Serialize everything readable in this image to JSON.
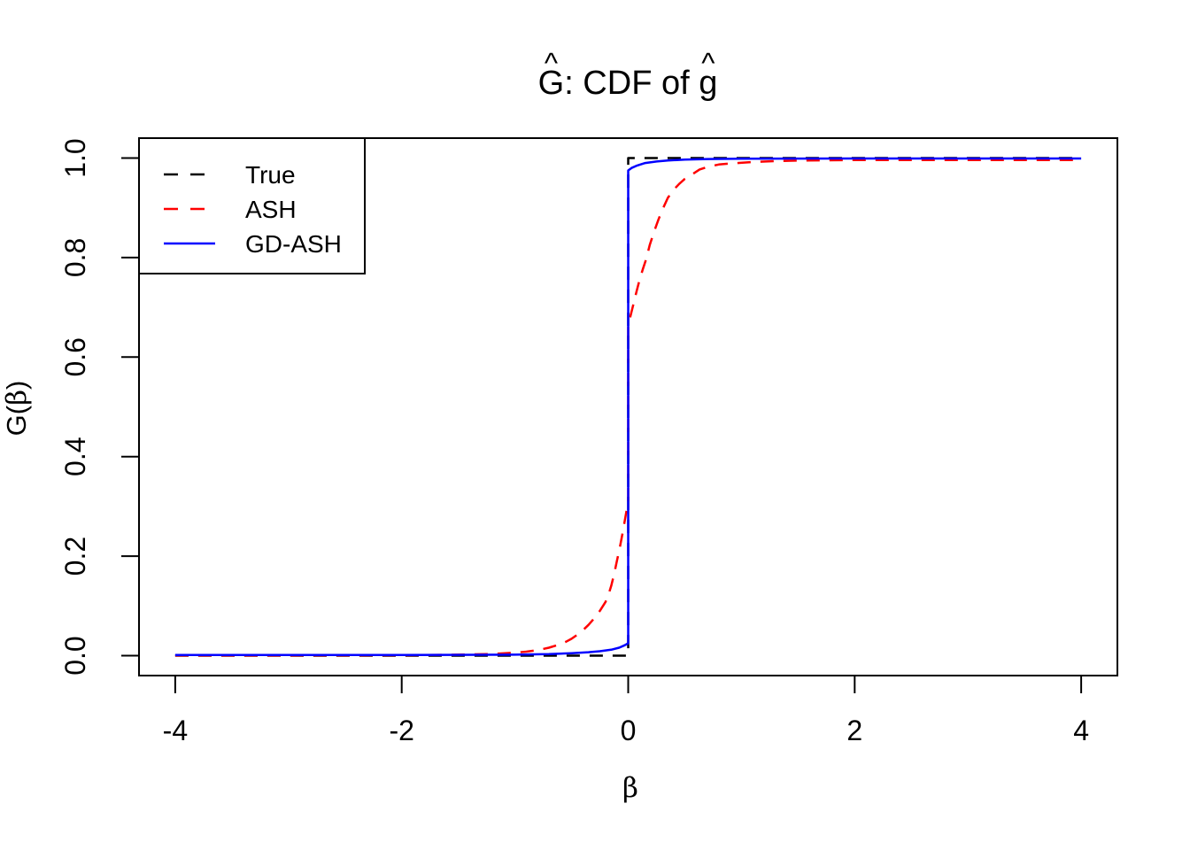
{
  "chart_data": {
    "type": "line",
    "title": "Ĝ: CDF of ĝ",
    "title_parts": {
      "hat": "^",
      "G": "G",
      "middle": ": CDF of ",
      "g": "g"
    },
    "xlabel": "β",
    "ylabel": "Ĝ(β)",
    "ylabel_parts": {
      "hat": "^",
      "G": "G",
      "open": "(",
      "beta": "β",
      "close": ")"
    },
    "xlim": [
      -4,
      4
    ],
    "ylim": [
      0,
      1
    ],
    "grid": false,
    "x_ticks": [
      -4,
      -2,
      0,
      2,
      4
    ],
    "x_tick_labels": [
      "-4",
      "-2",
      "0",
      "2",
      "4"
    ],
    "y_ticks": [
      0,
      0.2,
      0.4,
      0.6,
      0.8,
      1.0
    ],
    "y_tick_labels": [
      "0.0",
      "0.2",
      "0.4",
      "0.6",
      "0.8",
      "1.0"
    ],
    "legend": {
      "position": "top-left",
      "border": true,
      "entries": [
        {
          "label": "True",
          "color": "#000000",
          "line": "dashed"
        },
        {
          "label": "ASH",
          "color": "#FF0000",
          "line": "dashed"
        },
        {
          "label": "GD-ASH",
          "color": "#0000FF",
          "line": "solid"
        }
      ]
    },
    "series": [
      {
        "name": "True",
        "color": "#000000",
        "line": "dashed",
        "description": "step CDF: 0 for beta<0, jumps to 1 at beta=0",
        "points": [
          [
            -4,
            0
          ],
          [
            0,
            0
          ],
          [
            0,
            1
          ],
          [
            4,
            1
          ]
        ]
      },
      {
        "name": "ASH",
        "color": "#FF0000",
        "line": "dashed",
        "description": "smooth CDF rising from ~0 near beta=-0.6 to 0.31 at 0-, jump to 0.664 at 0, approaching ~1 by beta=1",
        "points": [
          [
            -4,
            0.0005
          ],
          [
            -3,
            0.0005
          ],
          [
            -2,
            0.001
          ],
          [
            -1.5,
            0.002
          ],
          [
            -1.2,
            0.0035
          ],
          [
            -1.0,
            0.006
          ],
          [
            -0.9,
            0.008
          ],
          [
            -0.8,
            0.011
          ],
          [
            -0.7,
            0.016
          ],
          [
            -0.6,
            0.023
          ],
          [
            -0.55,
            0.028
          ],
          [
            -0.5,
            0.034
          ],
          [
            -0.45,
            0.042
          ],
          [
            -0.4,
            0.051
          ],
          [
            -0.35,
            0.062
          ],
          [
            -0.3,
            0.075
          ],
          [
            -0.25,
            0.09
          ],
          [
            -0.2,
            0.108
          ],
          [
            -0.175,
            0.122
          ],
          [
            -0.15,
            0.14
          ],
          [
            -0.125,
            0.163
          ],
          [
            -0.1,
            0.19
          ],
          [
            -0.075,
            0.216
          ],
          [
            -0.05,
            0.246
          ],
          [
            -0.025,
            0.278
          ],
          [
            0,
            0.31
          ],
          [
            0,
            0.664
          ],
          [
            0.05,
            0.71
          ],
          [
            0.075,
            0.733
          ],
          [
            0.1,
            0.755
          ],
          [
            0.13,
            0.777
          ],
          [
            0.16,
            0.798
          ],
          [
            0.19,
            0.825
          ],
          [
            0.23,
            0.853
          ],
          [
            0.27,
            0.878
          ],
          [
            0.31,
            0.9
          ],
          [
            0.35,
            0.92
          ],
          [
            0.4,
            0.936
          ],
          [
            0.45,
            0.948
          ],
          [
            0.5,
            0.958
          ],
          [
            0.55,
            0.965
          ],
          [
            0.63,
            0.977
          ],
          [
            0.7,
            0.982
          ],
          [
            0.8,
            0.987
          ],
          [
            0.9,
            0.989
          ],
          [
            1.1,
            0.992
          ],
          [
            1.3,
            0.994
          ],
          [
            1.5,
            0.995
          ],
          [
            2,
            0.996
          ],
          [
            3,
            0.996
          ],
          [
            4,
            0.996
          ]
        ]
      },
      {
        "name": "GD-ASH",
        "color": "#0000FF",
        "line": "solid",
        "description": "near-step CDF, almost identical to True with slight smoothing near beta=0",
        "points": [
          [
            -4,
            0.0015
          ],
          [
            -2,
            0.0015
          ],
          [
            -1,
            0.002
          ],
          [
            -0.7,
            0.003
          ],
          [
            -0.5,
            0.005
          ],
          [
            -0.35,
            0.007
          ],
          [
            -0.25,
            0.009
          ],
          [
            -0.15,
            0.012
          ],
          [
            -0.08,
            0.016
          ],
          [
            -0.03,
            0.021
          ],
          [
            0,
            0.025
          ],
          [
            0,
            0.975
          ],
          [
            0.03,
            0.98
          ],
          [
            0.08,
            0.985
          ],
          [
            0.15,
            0.99
          ],
          [
            0.25,
            0.993
          ],
          [
            0.35,
            0.995
          ],
          [
            0.5,
            0.997
          ],
          [
            0.7,
            0.998
          ],
          [
            1,
            0.9985
          ],
          [
            2,
            0.999
          ],
          [
            4,
            0.999
          ]
        ]
      }
    ]
  }
}
